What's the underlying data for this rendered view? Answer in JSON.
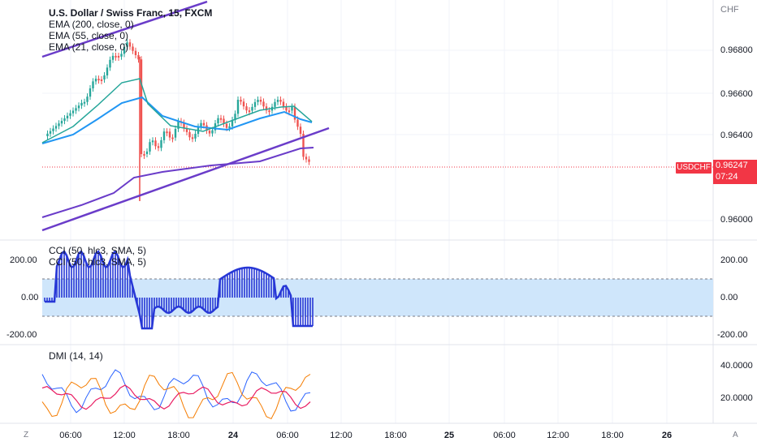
{
  "main_panel": {
    "title": "U.S. Dollar / Swiss Franc, 15, FXCM",
    "indicators": [
      "EMA (200, close, 0)",
      "EMA (55, close, 0)",
      "EMA (21, close, 0)"
    ],
    "currency_label": "CHF",
    "price_ticks": [
      "0.96800",
      "0.96600",
      "0.96400",
      "0.96000"
    ],
    "symbol_tag": "USDCHF",
    "last_price": "0.96247",
    "countdown": "07:24"
  },
  "cci_panel": {
    "labels": [
      "CCI (50, hlc3, SMA, 5)",
      "CCI (50, hlc3, SMA, 5)"
    ],
    "ticks": [
      "200.00",
      "0.00",
      "-200.00"
    ]
  },
  "dmi_panel": {
    "label": "DMI (14, 14)",
    "ticks": [
      "40.0000",
      "20.0000"
    ]
  },
  "time_axis": {
    "labels": [
      "06:00",
      "12:00",
      "18:00",
      "24",
      "06:00",
      "12:00",
      "18:00",
      "25",
      "06:00",
      "12:00",
      "18:00",
      "26"
    ],
    "zoom_button": "Z",
    "auto_button": "A"
  },
  "colors": {
    "bull": "#26a69a",
    "bear": "#ef5350",
    "ema200": "#6a3cc9",
    "ema55": "#2196f3",
    "ema21": "#26a69a",
    "trendline": "#6a3cc9",
    "cci": "#2737d6",
    "cci_band": "#cfe6fb",
    "dmi_plus": "#2962ff",
    "dmi_minus": "#f57c00",
    "adx": "#e91e63",
    "price_tag": "#f23645"
  }
}
